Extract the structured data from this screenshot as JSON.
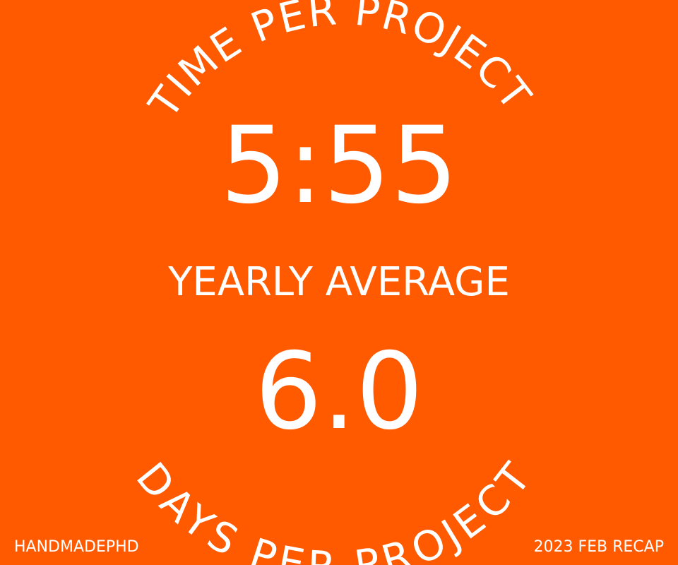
{
  "colors": {
    "background": "#ff5a00",
    "text": "#ffffff"
  },
  "top_arc_label": "TIME PER PROJECT",
  "time_per_project": "5:55",
  "subtitle": "YEARLY AVERAGE",
  "days_per_project": "6.0",
  "bottom_arc_label": "DAYS PER PROJECT",
  "footer": {
    "brand": "HANDMADEPHD",
    "recap": "2023 FEB RECAP"
  }
}
